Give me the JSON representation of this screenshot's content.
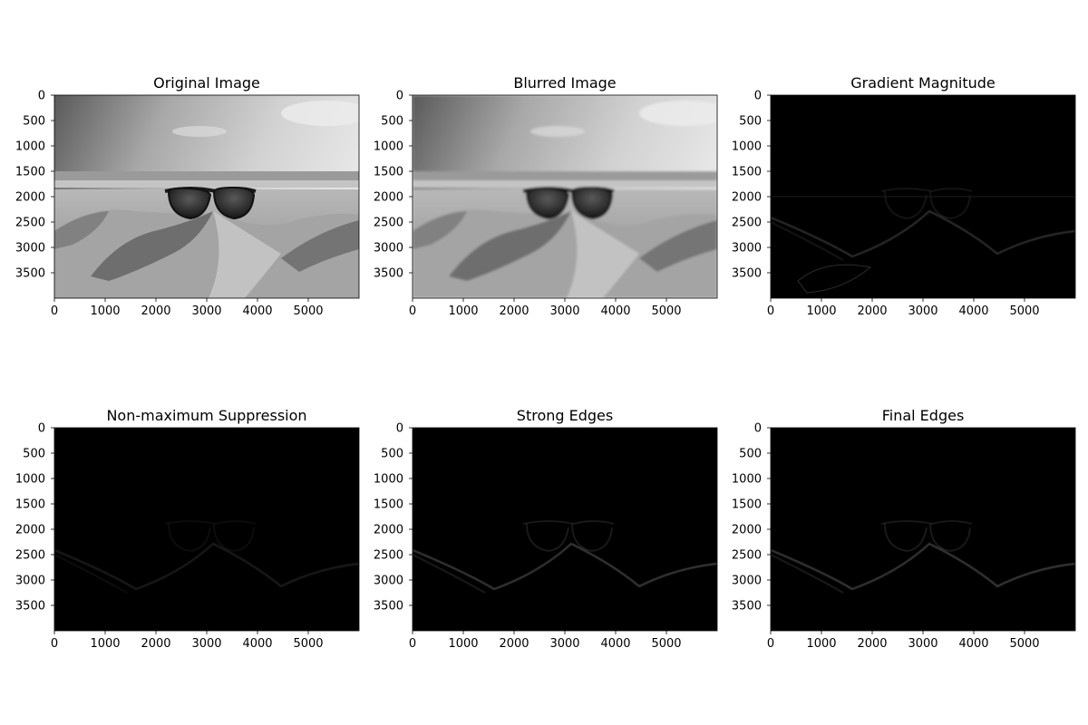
{
  "figure": {
    "background": "#ffffff"
  },
  "chart_data": [
    {
      "type": "image",
      "title": "Original Image",
      "image_shape": [
        4000,
        6000
      ],
      "xlim": [
        0,
        6000
      ],
      "ylim": [
        4000,
        0
      ],
      "xticks": [
        0,
        1000,
        2000,
        3000,
        4000,
        5000
      ],
      "yticks": [
        0,
        500,
        1000,
        1500,
        2000,
        2500,
        3000,
        3500
      ],
      "content": "grayscale photo of sunglasses resting on sand at a beach"
    },
    {
      "type": "image",
      "title": "Blurred Image",
      "image_shape": [
        4000,
        6000
      ],
      "xlim": [
        0,
        6000
      ],
      "ylim": [
        4000,
        0
      ],
      "xticks": [
        0,
        1000,
        2000,
        3000,
        4000,
        5000
      ],
      "yticks": [
        0,
        500,
        1000,
        1500,
        2000,
        2500,
        3000,
        3500
      ],
      "content": "gaussian-blurred grayscale photo"
    },
    {
      "type": "image",
      "title": "Gradient Magnitude",
      "image_shape": [
        4000,
        6000
      ],
      "xlim": [
        0,
        6000
      ],
      "ylim": [
        4000,
        0
      ],
      "xticks": [
        0,
        1000,
        2000,
        3000,
        4000,
        5000
      ],
      "yticks": [
        0,
        500,
        1000,
        1500,
        2000,
        2500,
        3000,
        3500
      ],
      "content": "dark gradient magnitude map with faint outlines"
    },
    {
      "type": "image",
      "title": "Non-maximum Suppression",
      "image_shape": [
        4000,
        6000
      ],
      "xlim": [
        0,
        6000
      ],
      "ylim": [
        4000,
        0
      ],
      "xticks": [
        0,
        1000,
        2000,
        3000,
        4000,
        5000
      ],
      "yticks": [
        0,
        500,
        1000,
        1500,
        2000,
        2500,
        3000,
        3500
      ],
      "content": "thinned edge map, mostly black"
    },
    {
      "type": "image",
      "title": "Strong Edges",
      "image_shape": [
        4000,
        6000
      ],
      "xlim": [
        0,
        6000
      ],
      "ylim": [
        4000,
        0
      ],
      "xticks": [
        0,
        1000,
        2000,
        3000,
        4000,
        5000
      ],
      "yticks": [
        0,
        500,
        1000,
        1500,
        2000,
        2500,
        3000,
        3500
      ],
      "content": "thresholded strong edges, mostly black"
    },
    {
      "type": "image",
      "title": "Final Edges",
      "image_shape": [
        4000,
        6000
      ],
      "xlim": [
        0,
        6000
      ],
      "ylim": [
        4000,
        0
      ],
      "xticks": [
        0,
        1000,
        2000,
        3000,
        4000,
        5000
      ],
      "yticks": [
        0,
        500,
        1000,
        1500,
        2000,
        2500,
        3000,
        3500
      ],
      "content": "hysteresis final edge map, mostly black"
    }
  ]
}
